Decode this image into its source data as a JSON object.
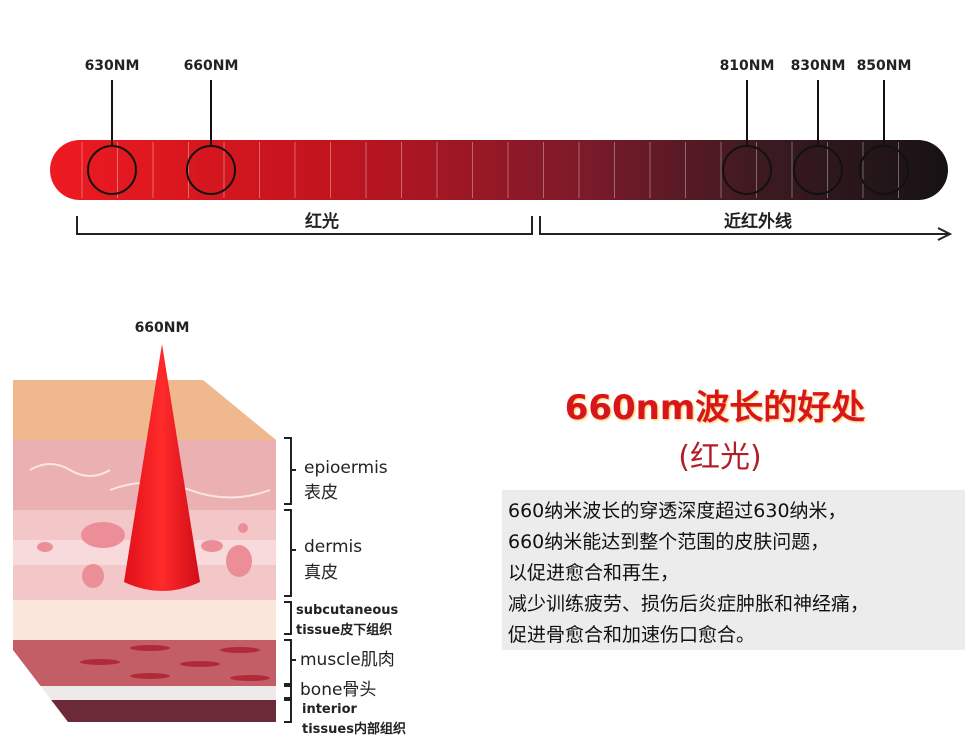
{
  "spectrum": {
    "wavelengths": [
      "630NM",
      "660NM",
      "810NM",
      "830NM",
      "850NM"
    ],
    "ranges": [
      {
        "label": "红光"
      },
      {
        "label": "近红外线"
      }
    ],
    "colors": {
      "start": "#e8141c",
      "end": "#1c1214"
    }
  },
  "skin": {
    "beam_label": "660NM",
    "layers": [
      {
        "label": "epioermis",
        "cn": "表皮"
      },
      {
        "label": "dermis",
        "cn": "真皮"
      },
      {
        "label": "subcutaneous",
        "cn": "tissue皮下组织"
      },
      {
        "label": "muscle肌肉"
      },
      {
        "label": "bone骨头"
      },
      {
        "label": "interior",
        "cn": "tissues内部组织"
      }
    ]
  },
  "benefits": {
    "title": "660nm波长的好处",
    "subtitle": "(红光)",
    "lines": [
      "660纳米波长的穿透深度超过630纳米，",
      "660纳米能达到整个范围的皮肤问题，",
      "以促进愈合和再生，",
      "减少训练疲劳、损伤后炎症肿胀和神经痛，",
      "促进骨愈合和加速伤口愈合。"
    ]
  }
}
